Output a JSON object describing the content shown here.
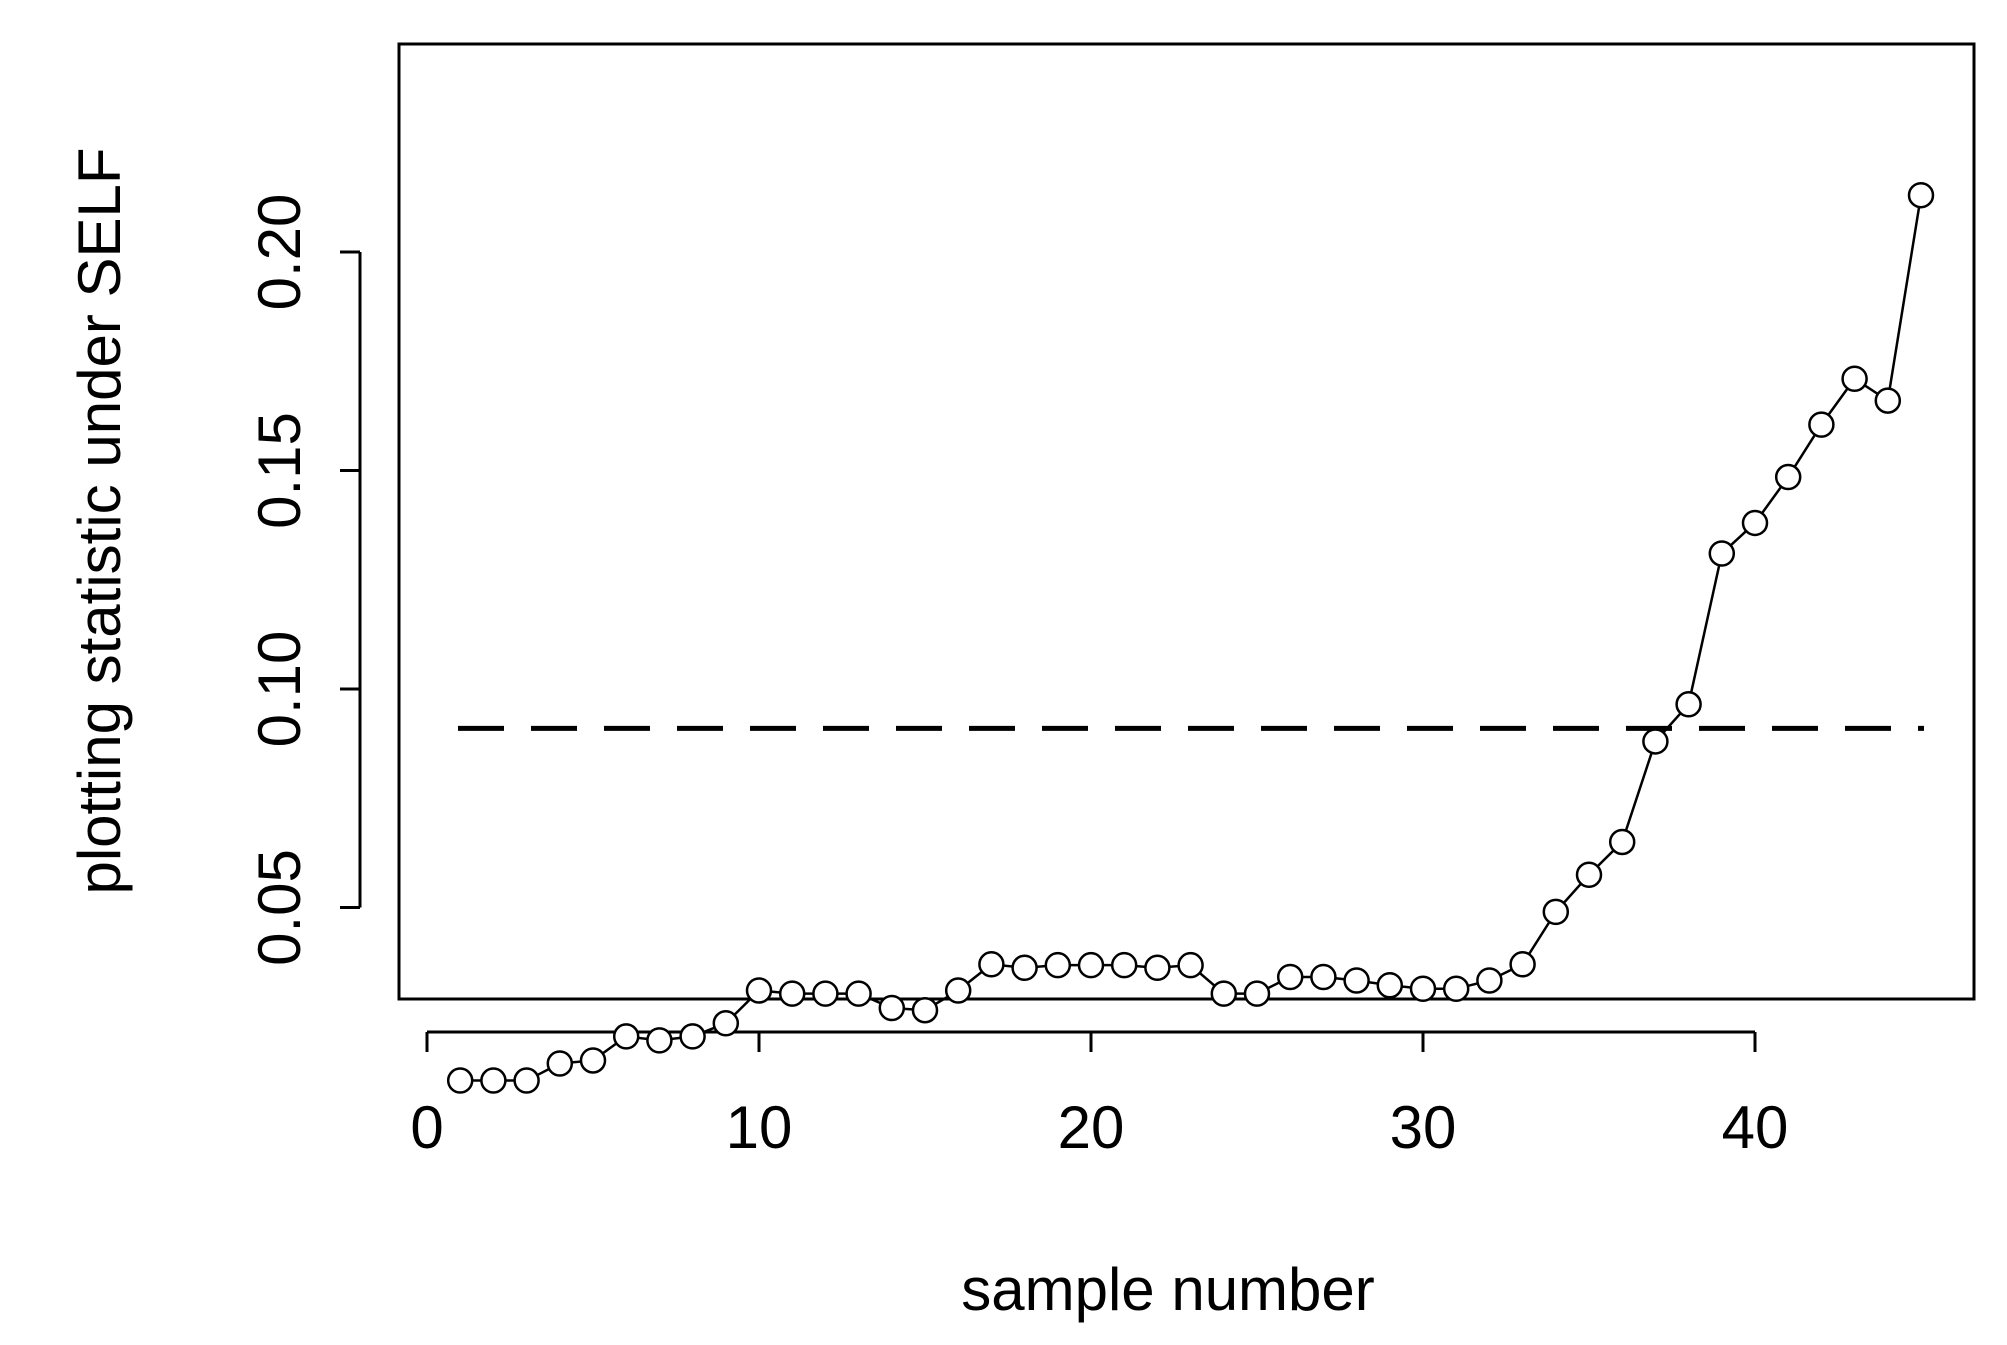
{
  "chart_data": {
    "type": "line",
    "title": "",
    "xlabel": "sample number",
    "ylabel": "plotting statistic under SELF",
    "xlim": [
      0,
      45
    ],
    "ylim": [
      0.01,
      0.22
    ],
    "x_ticks": [
      0,
      10,
      20,
      30,
      40
    ],
    "x_tick_labels": [
      "0",
      "10",
      "20",
      "30",
      "40"
    ],
    "y_ticks": [
      0.05,
      0.1,
      0.15,
      0.2
    ],
    "y_tick_labels": [
      "0.05",
      "0.10",
      "0.15",
      "0.20"
    ],
    "grid": false,
    "marker": "open-circle",
    "series": [
      {
        "x": [
          1,
          2,
          3,
          4,
          5,
          6,
          7,
          8,
          9,
          10,
          11,
          12,
          13,
          14,
          15,
          16,
          17,
          18,
          19,
          20,
          21,
          22,
          23,
          24,
          25,
          26,
          27,
          28,
          29,
          30,
          31,
          32,
          33,
          34,
          35,
          36,
          37,
          38,
          39,
          40,
          41,
          42,
          43,
          44,
          45
        ],
        "y": [
          0.0104,
          0.0104,
          0.0104,
          0.0143,
          0.015,
          0.0205,
          0.0196,
          0.0205,
          0.0235,
          0.031,
          0.0303,
          0.0303,
          0.0303,
          0.027,
          0.0265,
          0.031,
          0.037,
          0.0362,
          0.0368,
          0.0368,
          0.0368,
          0.0362,
          0.0368,
          0.0303,
          0.0303,
          0.0341,
          0.0341,
          0.0333,
          0.0322,
          0.0314,
          0.0314,
          0.0333,
          0.037,
          0.049,
          0.0575,
          0.065,
          0.088,
          0.0965,
          0.131,
          0.138,
          0.1485,
          0.1605,
          0.171,
          0.166,
          0.213
        ],
        "color": "#000000"
      }
    ],
    "reference_lines": [
      {
        "orientation": "horizontal",
        "y": 0.091,
        "style": "dashed",
        "color": "#000000"
      }
    ]
  }
}
